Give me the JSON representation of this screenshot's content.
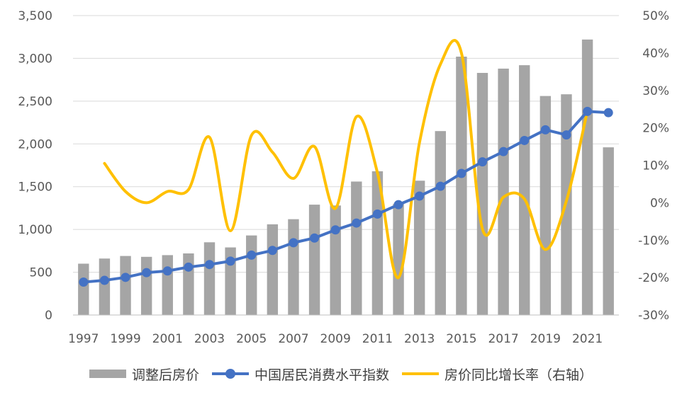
{
  "chart_data": {
    "type": "bar+line",
    "x_tick_labels": [
      "1997",
      "1999",
      "2001",
      "2003",
      "2005",
      "2007",
      "2009",
      "2011",
      "2013",
      "2015",
      "2017",
      "2019",
      "2021"
    ],
    "categories": [
      "1997",
      "1998",
      "1999",
      "2000",
      "2001",
      "2002",
      "2003",
      "2004",
      "2005",
      "2006",
      "2007",
      "2008",
      "2009",
      "2010",
      "2011",
      "2012",
      "2013",
      "2014",
      "2015",
      "2016",
      "2017",
      "2018",
      "2019",
      "2020",
      "2021",
      "2022"
    ],
    "series": [
      {
        "name": "调整后房价",
        "type": "bar",
        "axis": "left",
        "color": "#a5a5a5",
        "values": [
          600,
          660,
          690,
          680,
          700,
          720,
          850,
          790,
          930,
          1060,
          1120,
          1290,
          1280,
          1560,
          1680,
          1300,
          1570,
          2150,
          3020,
          2830,
          2880,
          2920,
          2560,
          2580,
          3220,
          1960
        ]
      },
      {
        "name": "中国居民消费水平指数",
        "type": "line-marker",
        "axis": "left",
        "color": "#4472c4",
        "values": [
          385,
          405,
          440,
          495,
          515,
          560,
          590,
          630,
          700,
          755,
          845,
          900,
          995,
          1075,
          1180,
          1290,
          1390,
          1505,
          1655,
          1790,
          1910,
          2040,
          2165,
          2105,
          2380,
          2365
        ]
      },
      {
        "name": "房价同比增长率（右轴）",
        "type": "smooth-line",
        "axis": "right",
        "color": "#ffc000",
        "values": [
          null,
          10.5,
          3.0,
          0.0,
          3.0,
          3.5,
          17.5,
          -7.5,
          18.0,
          13.5,
          6.5,
          15.0,
          -1.5,
          23.0,
          8.0,
          -20.0,
          16.0,
          37.0,
          40.0,
          -7.0,
          1.5,
          1.0,
          -12.5,
          0.5,
          24.5,
          null
        ]
      }
    ],
    "left_axis": {
      "min": 0,
      "max": 3500,
      "step": 500,
      "tick_labels": [
        "0",
        "500",
        "1,000",
        "1,500",
        "2,000",
        "2,500",
        "3,000",
        "3,500"
      ]
    },
    "right_axis": {
      "min": -30,
      "max": 50,
      "step": 10,
      "tick_labels": [
        "-30%",
        "-20%",
        "-10%",
        "0%",
        "10%",
        "20%",
        "30%",
        "40%",
        "50%"
      ]
    },
    "grid": true,
    "legend_position": "bottom"
  }
}
